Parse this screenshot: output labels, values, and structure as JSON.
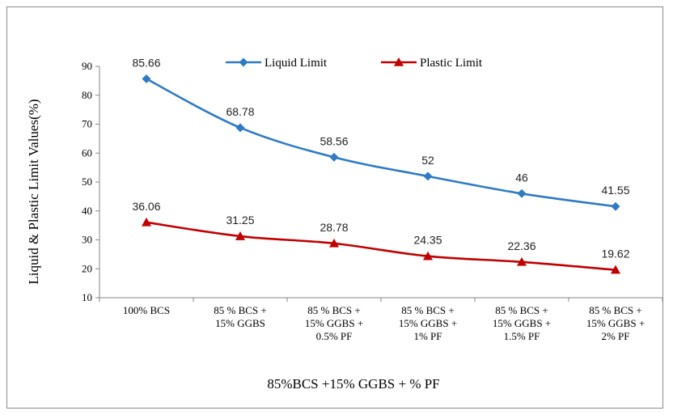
{
  "chart_data": {
    "type": "line",
    "categories": [
      [
        "100% BCS"
      ],
      [
        "85  % BCS +",
        "15% GGBS"
      ],
      [
        "85  % BCS +",
        "15% GGBS +",
        "0.5% PF"
      ],
      [
        "85  % BCS +",
        "15% GGBS +",
        "1% PF"
      ],
      [
        "85  % BCS +",
        "15% GGBS +",
        "1.5% PF"
      ],
      [
        "85  % BCS +",
        "15% GGBS +",
        "2% PF"
      ]
    ],
    "series": [
      {
        "name": "Liquid Limit",
        "color": "#2e7bc4",
        "marker": "diamond",
        "values": [
          85.66,
          68.78,
          58.56,
          52,
          46,
          41.55
        ],
        "labels": [
          "85.66",
          "68.78",
          "58.56",
          "52",
          "46",
          "41.55"
        ]
      },
      {
        "name": "Plastic Limit",
        "color": "#c00000",
        "marker": "triangle",
        "values": [
          36.06,
          31.25,
          28.78,
          24.35,
          22.36,
          19.62
        ],
        "labels": [
          "36.06",
          "31.25",
          "28.78",
          "24.35",
          "22.36",
          "19.62"
        ]
      }
    ],
    "xlabel": "85%BCS +15% GGBS + % PF",
    "ylabel": "Liquid & Plastic Limit Values(%)",
    "ylim": [
      10,
      90
    ],
    "yticks": [
      10,
      20,
      30,
      40,
      50,
      60,
      70,
      80,
      90
    ],
    "grid": false,
    "legend": "top"
  }
}
